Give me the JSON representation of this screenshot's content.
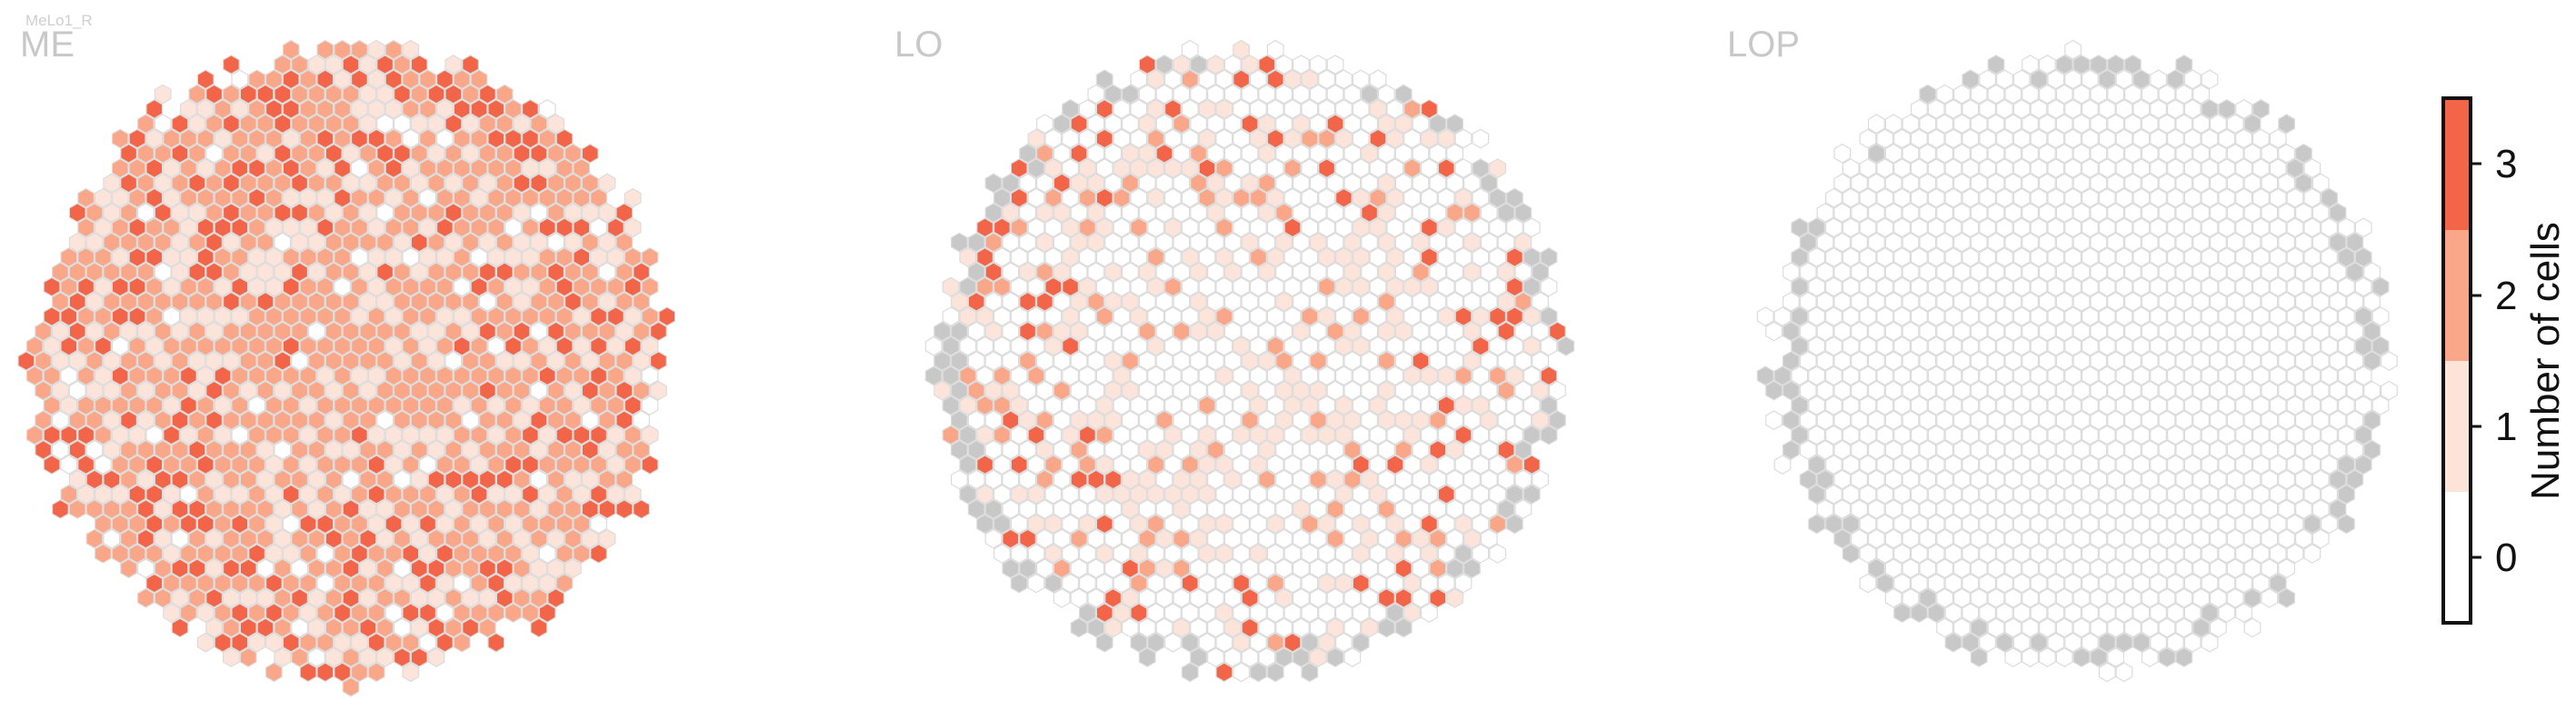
{
  "cell_type": "MeLo1_R",
  "colors": {
    "level_0": "#ffffff",
    "level_1": "#fde4da",
    "level_2": "#f9a689",
    "level_3": "#f26548",
    "hex_edge": "#dcdcdc",
    "outside_column": "#c8c8c8",
    "label_gray": "#c8c8c8"
  },
  "chart_data": {
    "type": "heatmap",
    "description_value": "count of cells per column hexagon",
    "panels": [
      {
        "name": "ME",
        "summary": "dense coverage; most columns 1-2, scattered 3",
        "level_distribution": {
          "0": 0.06,
          "1": 0.28,
          "2": 0.5,
          "3": 0.16
        }
      },
      {
        "name": "LO",
        "summary": "sparse coverage in center-left; many empty columns; gray edge columns",
        "level_distribution": {
          "0": 0.62,
          "1": 0.24,
          "2": 0.1,
          "3": 0.04
        }
      },
      {
        "name": "LOP",
        "summary": "no cells; all columns 0 with gray edge columns",
        "level_distribution": {
          "0": 1.0,
          "1": 0,
          "2": 0,
          "3": 0
        }
      }
    ],
    "colorbar": {
      "title": "Number of cells",
      "ticks": [
        "0",
        "1",
        "2",
        "3"
      ],
      "range": [
        -0.5,
        3.5
      ]
    }
  }
}
